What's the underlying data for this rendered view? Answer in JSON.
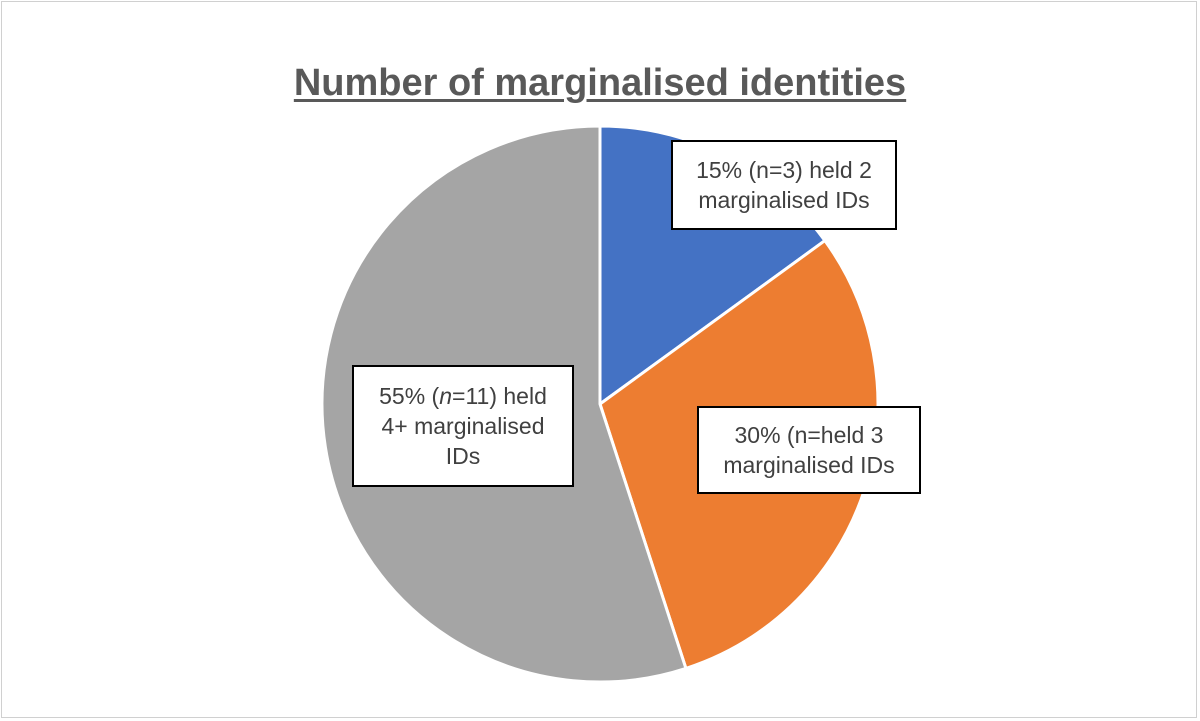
{
  "chart_data": {
    "type": "pie",
    "title": "Number of marginalised identities",
    "categories": [
      "2 marginalised IDs",
      "3 marginalised IDs",
      "4+ marginalised IDs"
    ],
    "values": [
      15,
      30,
      55
    ],
    "colors": [
      "#4472c4",
      "#ed7d31",
      "#a5a5a5"
    ],
    "labels": [
      {
        "line1": "15% (n=3) held 2",
        "line2": "marginalised IDs",
        "line3": ""
      },
      {
        "line1": "30% (n=held 3",
        "line2": "marginalised IDs",
        "line3": ""
      },
      {
        "line1_pre": "55% (",
        "line1_em": "n",
        "line1_post": "=11) held",
        "line2": "4+ marginalised",
        "line3": "IDs"
      }
    ]
  }
}
